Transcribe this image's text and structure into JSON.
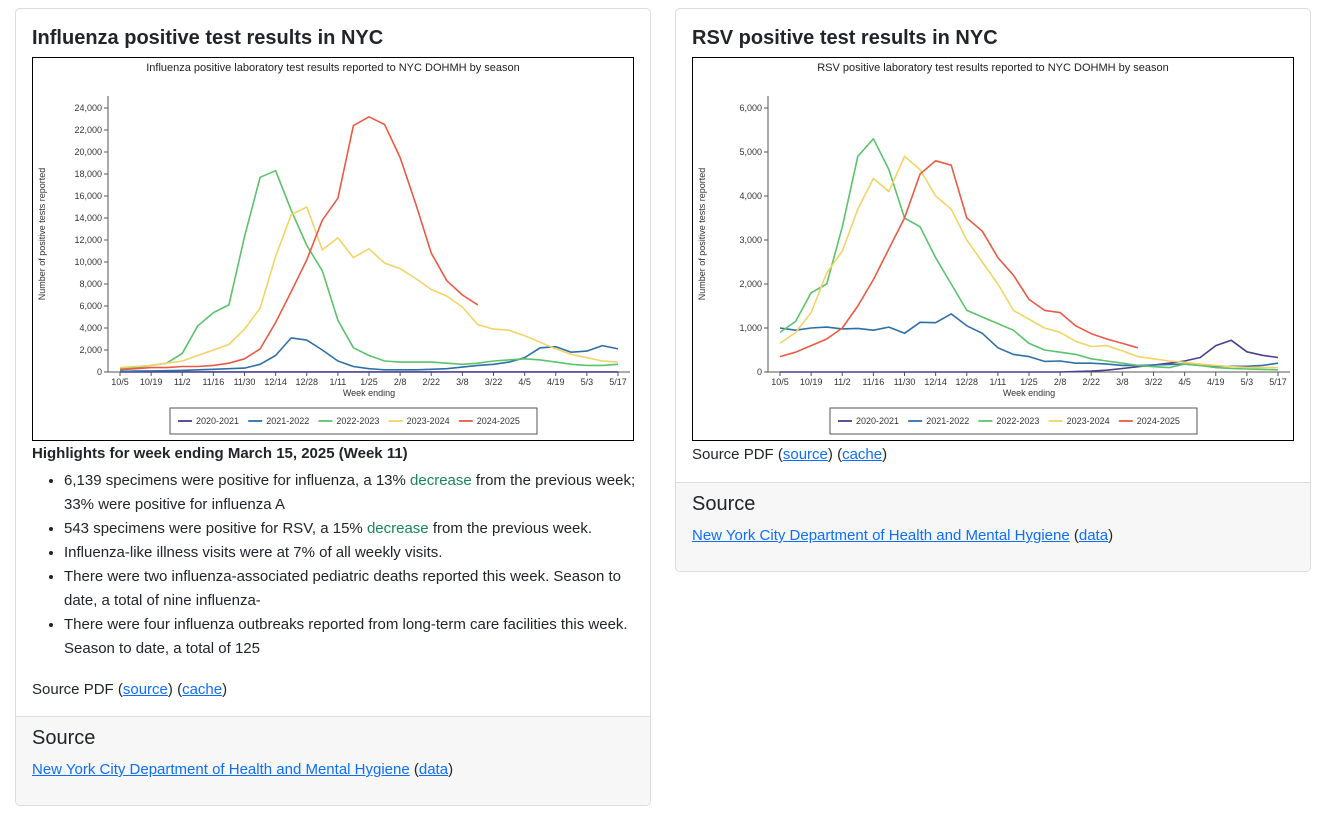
{
  "flu_card": {
    "title": "Influenza positive test results in NYC",
    "highlights_title": "Highlights for week ending March 15, 2025 (Week 11)",
    "bullets": [
      {
        "pre": "6,139 specimens were positive for influenza, a 13% ",
        "green": "decrease",
        "post": " from the previous week; 33% were positive for influenza A"
      },
      {
        "pre": "543 specimens were positive for RSV, a 15% ",
        "green": "decrease",
        "post": " from the previous week."
      },
      {
        "pre": "Influenza-like illness visits were at 7% of all weekly visits.",
        "green": "",
        "post": ""
      },
      {
        "pre": "There were two influenza-associated pediatric deaths reported this week. Season to date, a total of nine influenza-",
        "green": "",
        "post": ""
      },
      {
        "pre": "There were four influenza outbreaks reported from long-term care facilities this week. Season to date, a total of 125",
        "green": "",
        "post": ""
      }
    ],
    "source_pdf": {
      "label": "Source PDF",
      "source_link": "source",
      "cache_link": "cache"
    },
    "footer": {
      "heading": "Source",
      "link": "New York City Department of Health and Mental Hygiene",
      "data_link": "data"
    }
  },
  "rsv_card": {
    "title": "RSV positive test results in NYC",
    "source_pdf": {
      "label": "Source PDF",
      "source_link": "source",
      "cache_link": "cache"
    },
    "footer": {
      "heading": "Source",
      "link": "New York City Department of Health and Mental Hygiene",
      "data_link": "data"
    }
  },
  "colors": {
    "2020-2021": "#4b3f8f",
    "2021-2022": "#2f6fa8",
    "2022-2023": "#5bc36b",
    "2023-2024": "#f2d466",
    "2024-2025": "#ea5a44",
    "link": "#0d6efd",
    "green_text": "#198754"
  },
  "chart_data": [
    {
      "type": "line",
      "title": "Influenza positive laboratory test results reported to NYC DOHMH by season",
      "xlabel": "Week ending",
      "ylabel": "Number of positive tests reported",
      "ylim": [
        0,
        24000
      ],
      "yticks": [
        0,
        2000,
        4000,
        6000,
        8000,
        10000,
        12000,
        14000,
        16000,
        18000,
        20000,
        22000,
        24000
      ],
      "ytick_labels": [
        "0",
        "2,000",
        "4,000",
        "6,000",
        "8,000",
        "10,000",
        "12,000",
        "14,000",
        "16,000",
        "18,000",
        "20,000",
        "22,000",
        "24,000"
      ],
      "x": [
        "10/5",
        "10/12",
        "10/19",
        "10/26",
        "11/2",
        "11/9",
        "11/16",
        "11/23",
        "11/30",
        "12/7",
        "12/14",
        "12/21",
        "12/28",
        "1/4",
        "1/11",
        "1/18",
        "1/25",
        "2/1",
        "2/8",
        "2/15",
        "2/22",
        "3/1",
        "3/8",
        "3/15",
        "3/22",
        "3/29",
        "4/5",
        "4/12",
        "4/19",
        "4/26",
        "5/3",
        "5/10",
        "5/17"
      ],
      "xtick_labels": [
        "10/5",
        "10/19",
        "11/2",
        "11/16",
        "11/30",
        "12/14",
        "12/28",
        "1/11",
        "1/25",
        "2/8",
        "2/22",
        "3/8",
        "3/22",
        "4/5",
        "4/19",
        "5/3",
        "5/17"
      ],
      "grid": false,
      "legend": "bottom",
      "series": [
        {
          "name": "2020-2021",
          "values": [
            10,
            10,
            10,
            10,
            10,
            10,
            10,
            10,
            10,
            10,
            10,
            10,
            10,
            10,
            10,
            10,
            10,
            10,
            10,
            10,
            10,
            10,
            10,
            10,
            10,
            10,
            10,
            10,
            10,
            10,
            10,
            10,
            10
          ]
        },
        {
          "name": "2021-2022",
          "values": [
            50,
            80,
            100,
            120,
            150,
            200,
            250,
            300,
            350,
            700,
            1500,
            3100,
            2900,
            2000,
            1000,
            500,
            300,
            200,
            200,
            200,
            250,
            300,
            450,
            600,
            700,
            900,
            1300,
            2200,
            2300,
            1800,
            1900,
            2400,
            2100
          ]
        },
        {
          "name": "2022-2023",
          "values": [
            300,
            400,
            600,
            800,
            1700,
            4200,
            5400,
            6100,
            12300,
            17700,
            18300,
            14700,
            11500,
            9200,
            4700,
            2200,
            1500,
            1000,
            900,
            900,
            900,
            800,
            700,
            800,
            1000,
            1100,
            1200,
            1100,
            900,
            700,
            600,
            600,
            700
          ]
        },
        {
          "name": "2023-2024",
          "values": [
            400,
            500,
            600,
            800,
            1000,
            1500,
            2000,
            2500,
            3900,
            5800,
            10500,
            14300,
            15000,
            11100,
            12200,
            10400,
            11200,
            9900,
            9400,
            8500,
            7500,
            6900,
            5900,
            4300,
            3900,
            3800,
            3300,
            2700,
            2100,
            1600,
            1300,
            1000,
            900
          ]
        },
        {
          "name": "2024-2025",
          "values": [
            200,
            300,
            400,
            400,
            500,
            500,
            600,
            800,
            1200,
            2100,
            4500,
            7300,
            10200,
            13800,
            15800,
            22400,
            23200,
            22500,
            19500,
            15300,
            10800,
            8300,
            7000,
            6100,
            null,
            null,
            null,
            null,
            null,
            null,
            null,
            null,
            null
          ]
        }
      ]
    },
    {
      "type": "line",
      "title": "RSV positive laboratory test results reported to NYC DOHMH by season",
      "xlabel": "Week ending",
      "ylabel": "Number of positive tests reported",
      "ylim": [
        0,
        6000
      ],
      "yticks": [
        0,
        1000,
        2000,
        3000,
        4000,
        5000,
        6000
      ],
      "ytick_labels": [
        "0",
        "1,000",
        "2,000",
        "3,000",
        "4,000",
        "5,000",
        "6,000"
      ],
      "x": [
        "10/5",
        "10/12",
        "10/19",
        "10/26",
        "11/2",
        "11/9",
        "11/16",
        "11/23",
        "11/30",
        "12/7",
        "12/14",
        "12/21",
        "12/28",
        "1/4",
        "1/11",
        "1/18",
        "1/25",
        "2/1",
        "2/8",
        "2/15",
        "2/22",
        "3/1",
        "3/8",
        "3/15",
        "3/22",
        "3/29",
        "4/5",
        "4/12",
        "4/19",
        "4/26",
        "5/3",
        "5/10",
        "5/17"
      ],
      "xtick_labels": [
        "10/5",
        "10/19",
        "11/2",
        "11/16",
        "11/30",
        "12/14",
        "12/28",
        "1/11",
        "1/25",
        "2/8",
        "2/22",
        "3/8",
        "3/22",
        "4/5",
        "4/19",
        "5/3",
        "5/17"
      ],
      "grid": false,
      "legend": "bottom",
      "series": [
        {
          "name": "2020-2021",
          "values": [
            0,
            0,
            0,
            0,
            0,
            0,
            0,
            0,
            0,
            0,
            0,
            0,
            0,
            0,
            0,
            0,
            0,
            0,
            0,
            10,
            20,
            40,
            80,
            120,
            160,
            200,
            250,
            330,
            600,
            720,
            460,
            380,
            330
          ]
        },
        {
          "name": "2021-2022",
          "values": [
            1000,
            950,
            1000,
            1020,
            980,
            990,
            950,
            1020,
            880,
            1130,
            1120,
            1320,
            1050,
            880,
            550,
            400,
            350,
            240,
            250,
            200,
            200,
            180,
            150,
            150,
            160,
            170,
            180,
            150,
            130,
            130,
            130,
            150,
            200
          ]
        },
        {
          "name": "2022-2023",
          "values": [
            900,
            1150,
            1800,
            2000,
            3300,
            4900,
            5300,
            4600,
            3500,
            3300,
            2600,
            2000,
            1400,
            1250,
            1100,
            950,
            650,
            500,
            450,
            400,
            300,
            250,
            200,
            150,
            120,
            100,
            180,
            150,
            100,
            80,
            70,
            60,
            50
          ]
        },
        {
          "name": "2023-2024",
          "values": [
            650,
            900,
            1350,
            2250,
            2750,
            3700,
            4400,
            4100,
            4900,
            4600,
            4000,
            3700,
            3000,
            2500,
            2000,
            1400,
            1200,
            1000,
            900,
            700,
            580,
            600,
            480,
            350,
            300,
            250,
            220,
            180,
            150,
            120,
            100,
            100,
            100
          ]
        },
        {
          "name": "2024-2025",
          "values": [
            350,
            450,
            600,
            750,
            1000,
            1500,
            2100,
            2800,
            3500,
            4500,
            4800,
            4700,
            3500,
            3200,
            2600,
            2200,
            1650,
            1400,
            1350,
            1050,
            870,
            750,
            650,
            550,
            null,
            null,
            null,
            null,
            null,
            null,
            null,
            null,
            null
          ]
        }
      ]
    }
  ]
}
